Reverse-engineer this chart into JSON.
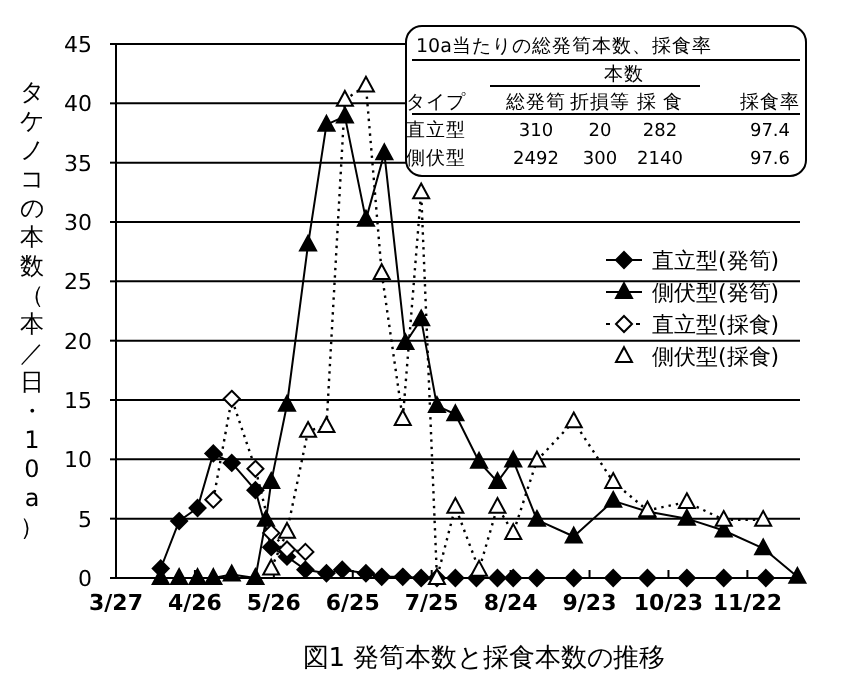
{
  "chart_data": {
    "type": "line",
    "ylabel": "タケノコの本数（本／日・10a）",
    "xlim": [
      "--03-27",
      "--12-12"
    ],
    "xticks": [
      {
        "value": "--03-27",
        "label": "3/27"
      },
      {
        "value": "--04-26",
        "label": "4/26"
      },
      {
        "value": "--05-26",
        "label": "5/26"
      },
      {
        "value": "--06-25",
        "label": "6/25"
      },
      {
        "value": "--07-25",
        "label": "7/25"
      },
      {
        "value": "--08-24",
        "label": "8/24"
      },
      {
        "value": "--09-23",
        "label": "9/23"
      },
      {
        "value": "--10-23",
        "label": "10/23"
      },
      {
        "value": "--11-22",
        "label": "11/22"
      }
    ],
    "ylim": [
      0,
      45
    ],
    "yticks": [
      0,
      5,
      10,
      15,
      20,
      25,
      30,
      35,
      40,
      45
    ],
    "grid": "y",
    "legend": "right",
    "series": [
      {
        "name": "直立型(発筍)",
        "color": "#000000",
        "marker": "diamond",
        "line_style": "solid",
        "x": [
          "--04-13",
          "--04-20",
          "--04-27",
          "--05-03",
          "--05-10",
          "--05-19",
          "--05-25",
          "--05-31",
          "--06-07",
          "--06-15",
          "--06-21",
          "--06-30",
          "--07-06",
          "--07-14",
          "--07-21",
          "--07-27",
          "--08-03",
          "--08-11",
          "--08-19",
          "--08-25",
          "--09-03",
          "--09-17",
          "--10-02",
          "--10-15",
          "--10-30",
          "--11-13",
          "--11-29"
        ],
        "values": [
          0.8,
          4.8,
          5.9,
          10.5,
          9.7,
          7.4,
          2.6,
          1.8,
          0.7,
          0.4,
          0.7,
          0.4,
          0.1,
          0.1,
          0,
          0,
          0,
          0,
          0,
          0,
          0,
          0,
          0,
          0,
          0,
          0,
          0
        ]
      },
      {
        "name": "側伏型(発筍)",
        "color": "#000000",
        "marker": "triangle",
        "line_style": "solid",
        "x": [
          "--04-13",
          "--04-20",
          "--04-27",
          "--05-03",
          "--05-10",
          "--05-19",
          "--05-23",
          "--05-25",
          "--05-31",
          "--06-08",
          "--06-15",
          "--06-22",
          "--06-30",
          "--07-07",
          "--07-15",
          "--07-21",
          "--07-27",
          "--08-03",
          "--08-12",
          "--08-19",
          "--08-25",
          "--09-03",
          "--09-17",
          "--10-02",
          "--10-15",
          "--10-30",
          "--11-13",
          "--11-28",
          "--12-11"
        ],
        "values": [
          0,
          0,
          0,
          0,
          0.3,
          0,
          4.9,
          8.1,
          14.6,
          28.1,
          38.2,
          38.9,
          30.2,
          35.8,
          19.8,
          21.8,
          14.5,
          13.8,
          9.8,
          8.1,
          9.9,
          4.9,
          3.5,
          6.5,
          5.6,
          5.0,
          4.0,
          2.5,
          0.1
        ]
      },
      {
        "name": "直立型(採食)",
        "color": "#000000",
        "marker": "diamond",
        "line_style": "dotted",
        "x": [
          "--05-03",
          "--05-10",
          "--05-19",
          "--05-25",
          "--05-31",
          "--06-07"
        ],
        "values": [
          6.6,
          15.1,
          9.2,
          3.8,
          2.4,
          2.2
        ]
      },
      {
        "name": "側伏型(採食)",
        "color": "#000000",
        "marker": "triangle",
        "line_style": "dotted",
        "x": [
          "--05-25",
          "--05-31",
          "--06-08",
          "--06-15",
          "--06-22",
          "--06-30",
          "--07-06",
          "--07-14",
          "--07-21",
          "--07-27",
          "--08-03",
          "--08-12",
          "--08-19",
          "--08-25",
          "--09-03",
          "--09-17",
          "--10-02",
          "--10-15",
          "--10-30",
          "--11-13",
          "--11-28"
        ],
        "values": [
          0.8,
          3.9,
          12.4,
          12.8,
          40.3,
          41.5,
          25.7,
          13.4,
          32.5,
          0,
          6.0,
          0.7,
          6.0,
          3.8,
          9.9,
          13.2,
          8.1,
          5.7,
          6.4,
          4.9,
          4.9
        ]
      }
    ],
    "annotations": [
      "10a当たりの総発筍本数、採食率",
      "本数",
      "タイプ",
      "総発筍",
      "折損等",
      "採 食",
      "採食率",
      "直立型",
      "310",
      "20",
      "282",
      "97.4",
      "側伏型",
      "2492",
      "300",
      "2140",
      "97.6",
      "図1  発筍本数と採食本数の推移"
    ]
  }
}
